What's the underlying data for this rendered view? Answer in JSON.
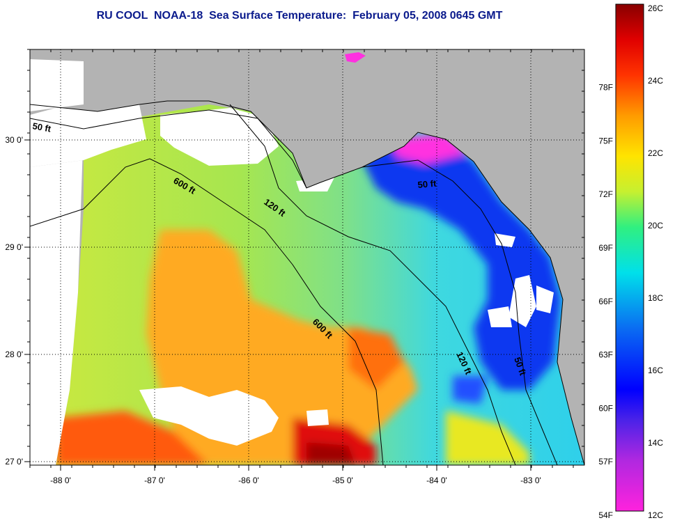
{
  "title": "RU COOL  NOAA-18  Sea Surface Temperature:  February 05, 2008 0645 GMT",
  "map": {
    "x_ticks": [
      {
        "lon": -88,
        "label": "-88 0'"
      },
      {
        "lon": -87,
        "label": "-87 0'"
      },
      {
        "lon": -86,
        "label": "-86 0'"
      },
      {
        "lon": -85,
        "label": "-85 0'"
      },
      {
        "lon": -84,
        "label": "-84 0'"
      },
      {
        "lon": -83,
        "label": "-83 0'"
      }
    ],
    "y_ticks": [
      {
        "lat": 30,
        "label": "30 0'"
      },
      {
        "lat": 29,
        "label": "29 0'"
      },
      {
        "lat": 28,
        "label": "28 0'"
      },
      {
        "lat": 27,
        "label": "27 0'"
      }
    ],
    "isobaths": [
      "50 ft",
      "600 ft",
      "120 ft",
      "600 ft",
      "50 ft",
      "120 ft",
      "50 ft"
    ],
    "colors": {
      "land": "#b3b3b3",
      "cloud": "#ffffff",
      "contour": "#000000"
    }
  },
  "colorbar": {
    "fahrenheit": [
      {
        "value": 78,
        "label": "78F"
      },
      {
        "value": 75,
        "label": "75F"
      },
      {
        "value": 72,
        "label": "72F"
      },
      {
        "value": 69,
        "label": "69F"
      },
      {
        "value": 66,
        "label": "66F"
      },
      {
        "value": 63,
        "label": "63F"
      },
      {
        "value": 60,
        "label": "60F"
      },
      {
        "value": 57,
        "label": "57F"
      },
      {
        "value": 54,
        "label": "54F"
      }
    ],
    "celsius": [
      {
        "value": 26,
        "label": "26C"
      },
      {
        "value": 24,
        "label": "24C"
      },
      {
        "value": 22,
        "label": "22C"
      },
      {
        "value": 20,
        "label": "20C"
      },
      {
        "value": 18,
        "label": "18C"
      },
      {
        "value": 16,
        "label": "16C"
      },
      {
        "value": 14,
        "label": "14C"
      },
      {
        "value": 12,
        "label": "12C"
      }
    ]
  }
}
